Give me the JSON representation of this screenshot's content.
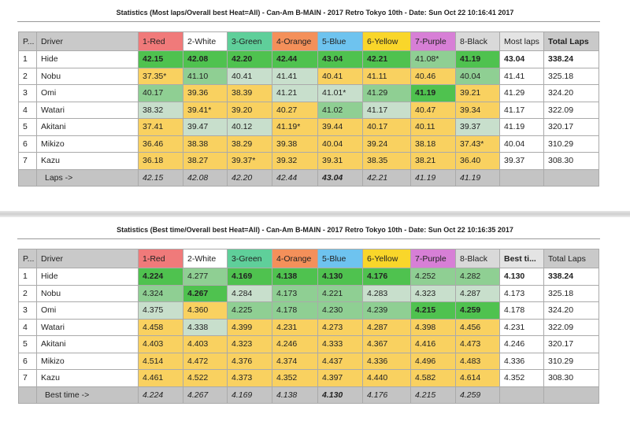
{
  "columns_colors": [
    "#f07a7a",
    "#ffffff",
    "#5fcf9a",
    "#f4905a",
    "#6ec3ef",
    "#f9d62a",
    "#d77fd6",
    "#d9d9d9"
  ],
  "reports": [
    {
      "title": "Statistics (Most laps/Overall best Heat=All) - Can-Am B-MAIN - 2017 Retro Tokyo 10th - Date: Sun Oct 22 10:16:41 2017",
      "headers": [
        "P...",
        "Driver",
        "1-Red",
        "2-White",
        "3-Green",
        "4-Orange",
        "5-Blue",
        "6-Yellow",
        "7-Purple",
        "8-Black",
        "Most laps",
        "Total Laps"
      ],
      "bold_headers": [
        11
      ],
      "rows": [
        {
          "pos": "1",
          "driver": "Hide",
          "cells": [
            [
              "42.15",
              "G"
            ],
            [
              "42.08",
              "G"
            ],
            [
              "42.20",
              "G"
            ],
            [
              "42.44",
              "G"
            ],
            [
              "43.04",
              "G"
            ],
            [
              "42.21",
              "G"
            ],
            [
              "41.08*",
              "g"
            ],
            [
              "41.19",
              "G"
            ]
          ],
          "best": "43.04",
          "total": "338.24",
          "bold": true
        },
        {
          "pos": "2",
          "driver": "Nobu",
          "cells": [
            [
              "37.35*",
              "y"
            ],
            [
              "41.10",
              "g"
            ],
            [
              "40.41",
              "l"
            ],
            [
              "41.41",
              "l"
            ],
            [
              "40.41",
              "y"
            ],
            [
              "41.11",
              "y"
            ],
            [
              "40.46",
              "y"
            ],
            [
              "40.04",
              "g"
            ]
          ],
          "best": "41.41",
          "total": "325.18"
        },
        {
          "pos": "3",
          "driver": "Omi",
          "cells": [
            [
              "40.17",
              "g"
            ],
            [
              "39.36",
              "y"
            ],
            [
              "38.39",
              "y"
            ],
            [
              "41.21",
              "l"
            ],
            [
              "41.01*",
              "l"
            ],
            [
              "41.29",
              "g"
            ],
            [
              "41.19",
              "G"
            ],
            [
              "39.21",
              "y"
            ]
          ],
          "best": "41.29",
          "total": "324.20"
        },
        {
          "pos": "4",
          "driver": "Watari",
          "cells": [
            [
              "38.32",
              "l"
            ],
            [
              "39.41*",
              "y"
            ],
            [
              "39.20",
              "y"
            ],
            [
              "40.27",
              "y"
            ],
            [
              "41.02",
              "g"
            ],
            [
              "41.17",
              "l"
            ],
            [
              "40.47",
              "y"
            ],
            [
              "39.34",
              "y"
            ]
          ],
          "best": "41.17",
          "total": "322.09"
        },
        {
          "pos": "5",
          "driver": "Akitani",
          "cells": [
            [
              "37.41",
              "y"
            ],
            [
              "39.47",
              "l"
            ],
            [
              "40.12",
              "l"
            ],
            [
              "41.19*",
              "y"
            ],
            [
              "39.44",
              "y"
            ],
            [
              "40.17",
              "y"
            ],
            [
              "40.11",
              "y"
            ],
            [
              "39.37",
              "l"
            ]
          ],
          "best": "41.19",
          "total": "320.17"
        },
        {
          "pos": "6",
          "driver": "Mikizo",
          "cells": [
            [
              "36.46",
              "y"
            ],
            [
              "38.38",
              "y"
            ],
            [
              "38.29",
              "y"
            ],
            [
              "39.38",
              "y"
            ],
            [
              "40.04",
              "y"
            ],
            [
              "39.24",
              "y"
            ],
            [
              "38.18",
              "y"
            ],
            [
              "37.43*",
              "y"
            ]
          ],
          "best": "40.04",
          "total": "310.29"
        },
        {
          "pos": "7",
          "driver": "Kazu",
          "cells": [
            [
              "36.18",
              "y"
            ],
            [
              "38.27",
              "y"
            ],
            [
              "39.37*",
              "y"
            ],
            [
              "39.32",
              "y"
            ],
            [
              "39.31",
              "y"
            ],
            [
              "38.35",
              "y"
            ],
            [
              "38.21",
              "y"
            ],
            [
              "36.40",
              "y"
            ]
          ],
          "best": "39.37",
          "total": "308.30"
        }
      ],
      "footer_label": "Laps ->",
      "footer": [
        "42.15",
        "42.08",
        "42.20",
        "42.44",
        "43.04",
        "42.21",
        "41.19",
        "41.19"
      ],
      "footer_bold": 4
    },
    {
      "title": "Statistics (Best time/Overall best Heat=All) - Can-Am B-MAIN - 2017 Retro Tokyo 10th - Date: Sun Oct 22 10:16:35 2017",
      "headers": [
        "P...",
        "Driver",
        "1-Red",
        "2-White",
        "3-Green",
        "4-Orange",
        "5-Blue",
        "6-Yellow",
        "7-Purple",
        "8-Black",
        "Best ti...",
        "Total Laps"
      ],
      "bold_headers": [
        10
      ],
      "rows": [
        {
          "pos": "1",
          "driver": "Hide",
          "cells": [
            [
              "4.224",
              "G"
            ],
            [
              "4.277",
              "g"
            ],
            [
              "4.169",
              "G"
            ],
            [
              "4.138",
              "G"
            ],
            [
              "4.130",
              "G"
            ],
            [
              "4.176",
              "G"
            ],
            [
              "4.252",
              "g"
            ],
            [
              "4.282",
              "g"
            ]
          ],
          "best": "4.130",
          "total": "338.24",
          "bold": true
        },
        {
          "pos": "2",
          "driver": "Nobu",
          "cells": [
            [
              "4.324",
              "g"
            ],
            [
              "4.267",
              "G"
            ],
            [
              "4.284",
              "l"
            ],
            [
              "4.173",
              "g"
            ],
            [
              "4.221",
              "g"
            ],
            [
              "4.283",
              "l"
            ],
            [
              "4.323",
              "l"
            ],
            [
              "4.287",
              "l"
            ]
          ],
          "best": "4.173",
          "total": "325.18"
        },
        {
          "pos": "3",
          "driver": "Omi",
          "cells": [
            [
              "4.375",
              "l"
            ],
            [
              "4.360",
              "y"
            ],
            [
              "4.225",
              "g"
            ],
            [
              "4.178",
              "g"
            ],
            [
              "4.230",
              "g"
            ],
            [
              "4.239",
              "g"
            ],
            [
              "4.215",
              "G"
            ],
            [
              "4.259",
              "G"
            ]
          ],
          "best": "4.178",
          "total": "324.20"
        },
        {
          "pos": "4",
          "driver": "Watari",
          "cells": [
            [
              "4.458",
              "y"
            ],
            [
              "4.338",
              "l"
            ],
            [
              "4.399",
              "y"
            ],
            [
              "4.231",
              "y"
            ],
            [
              "4.273",
              "y"
            ],
            [
              "4.287",
              "y"
            ],
            [
              "4.398",
              "y"
            ],
            [
              "4.456",
              "y"
            ]
          ],
          "best": "4.231",
          "total": "322.09"
        },
        {
          "pos": "5",
          "driver": "Akitani",
          "cells": [
            [
              "4.403",
              "y"
            ],
            [
              "4.403",
              "y"
            ],
            [
              "4.323",
              "y"
            ],
            [
              "4.246",
              "y"
            ],
            [
              "4.333",
              "y"
            ],
            [
              "4.367",
              "y"
            ],
            [
              "4.416",
              "y"
            ],
            [
              "4.473",
              "y"
            ]
          ],
          "best": "4.246",
          "total": "320.17"
        },
        {
          "pos": "6",
          "driver": "Mikizo",
          "cells": [
            [
              "4.514",
              "y"
            ],
            [
              "4.472",
              "y"
            ],
            [
              "4.376",
              "y"
            ],
            [
              "4.374",
              "y"
            ],
            [
              "4.437",
              "y"
            ],
            [
              "4.336",
              "y"
            ],
            [
              "4.496",
              "y"
            ],
            [
              "4.483",
              "y"
            ]
          ],
          "best": "4.336",
          "total": "310.29"
        },
        {
          "pos": "7",
          "driver": "Kazu",
          "cells": [
            [
              "4.461",
              "y"
            ],
            [
              "4.522",
              "y"
            ],
            [
              "4.373",
              "y"
            ],
            [
              "4.352",
              "y"
            ],
            [
              "4.397",
              "y"
            ],
            [
              "4.440",
              "y"
            ],
            [
              "4.582",
              "y"
            ],
            [
              "4.614",
              "y"
            ]
          ],
          "best": "4.352",
          "total": "308.30"
        }
      ],
      "footer_label": "Best time ->",
      "footer": [
        "4.224",
        "4.267",
        "4.169",
        "4.138",
        "4.130",
        "4.176",
        "4.215",
        "4.259"
      ],
      "footer_bold": 4
    }
  ]
}
